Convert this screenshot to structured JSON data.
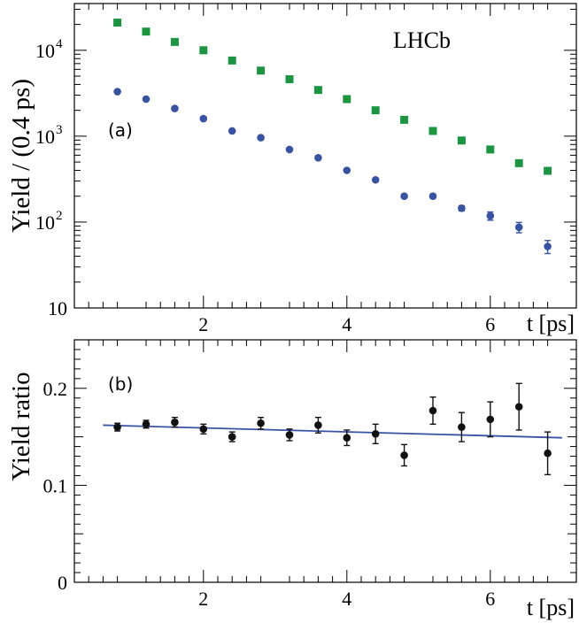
{
  "chart_data": [
    {
      "type": "scatter",
      "panel_label": "(a)",
      "annotation": "LHCb",
      "ylabel": "Yield / (0.4 ps)",
      "xlabel": "t [ps]",
      "yscale": "log",
      "xlim": [
        0.2,
        7.2
      ],
      "ylim": [
        10,
        35000
      ],
      "x_ticks": [
        2,
        4,
        6
      ],
      "y_ticks": [
        {
          "value": 10,
          "mant": "10",
          "exp": ""
        },
        {
          "value": 100,
          "mant": "10",
          "exp": "2"
        },
        {
          "value": 1000,
          "mant": "10",
          "exp": "3"
        },
        {
          "value": 10000,
          "mant": "10",
          "exp": "4"
        }
      ],
      "series": [
        {
          "marker": "square",
          "color": "#1a9641",
          "x": [
            0.8,
            1.2,
            1.6,
            2.0,
            2.4,
            2.8,
            3.2,
            3.6,
            4.0,
            4.4,
            4.8,
            5.2,
            5.6,
            6.0,
            6.4,
            6.8
          ],
          "y": [
            21000,
            16500,
            12500,
            10000,
            7600,
            5800,
            4600,
            3450,
            2700,
            2000,
            1550,
            1150,
            890,
            700,
            485,
            395
          ],
          "err": [
            0,
            0,
            0,
            0,
            0,
            0,
            0,
            0,
            0,
            0,
            0,
            0,
            0,
            0,
            0,
            0
          ]
        },
        {
          "marker": "circle",
          "color": "#3953a4",
          "x": [
            0.8,
            1.2,
            1.6,
            2.0,
            2.4,
            2.8,
            3.2,
            3.6,
            4.0,
            4.4,
            4.8,
            5.2,
            5.6,
            6.0,
            6.4,
            6.8
          ],
          "y": [
            3300,
            2700,
            2100,
            1600,
            1150,
            960,
            700,
            560,
            400,
            310,
            200,
            200,
            145,
            118,
            87,
            52
          ],
          "err": [
            0,
            0,
            0,
            0,
            0,
            0,
            0,
            0,
            0,
            0,
            0,
            0,
            10,
            13,
            12,
            9
          ]
        }
      ]
    },
    {
      "type": "scatter",
      "panel_label": "(b)",
      "ylabel": "Yield ratio",
      "xlabel": "t [ps]",
      "xlim": [
        0.2,
        7.2
      ],
      "ylim": [
        0,
        0.25
      ],
      "x_ticks": [
        2,
        4,
        6
      ],
      "y_ticks": [
        {
          "value": 0,
          "label": "0"
        },
        {
          "value": 0.1,
          "label": "0.1"
        },
        {
          "value": 0.2,
          "label": "0.2"
        }
      ],
      "series": [
        {
          "marker": "circle",
          "color": "#111111",
          "x": [
            0.8,
            1.2,
            1.6,
            2.0,
            2.4,
            2.8,
            3.2,
            3.6,
            4.0,
            4.4,
            4.8,
            5.2,
            5.6,
            6.0,
            6.4,
            6.8
          ],
          "y": [
            0.16,
            0.163,
            0.165,
            0.158,
            0.15,
            0.164,
            0.152,
            0.162,
            0.149,
            0.153,
            0.131,
            0.177,
            0.16,
            0.168,
            0.181,
            0.133
          ],
          "err": [
            0.004,
            0.004,
            0.005,
            0.005,
            0.005,
            0.006,
            0.006,
            0.008,
            0.008,
            0.01,
            0.011,
            0.014,
            0.015,
            0.018,
            0.024,
            0.022
          ]
        }
      ],
      "fit_line": {
        "color": "#3953a4",
        "x": [
          0.6,
          7.0
        ],
        "y": [
          0.162,
          0.149
        ]
      }
    }
  ]
}
